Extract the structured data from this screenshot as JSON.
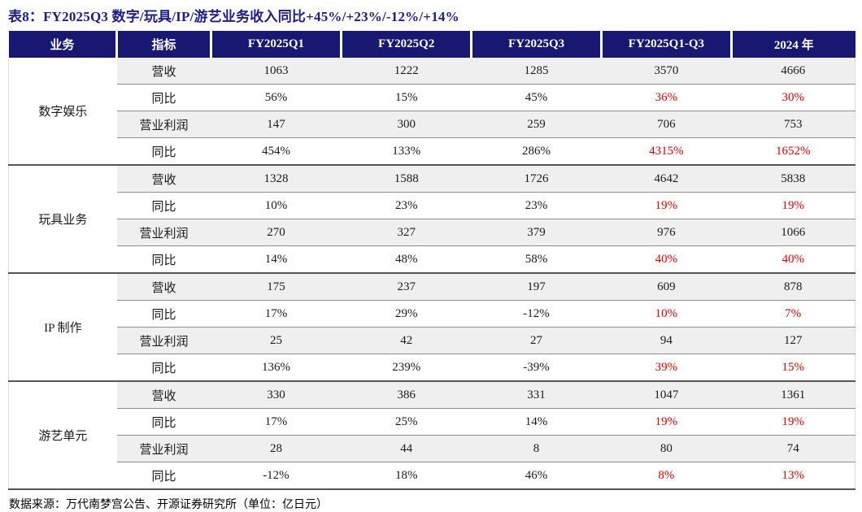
{
  "title": "表8：FY2025Q3 数字/玩具/IP/游艺业务收入同比+45%/+23%/-12%/+14%",
  "footer": "数据来源：万代南梦宫公告、开源证券研究所（单位：亿日元）",
  "colors": {
    "header_bg": "#181873",
    "title_text": "#1c1c8a",
    "negative_highlight_red": "#e80000",
    "row_shade": "#efefef",
    "row_border": "#8c8c8c",
    "group_border": "#555555"
  },
  "table": {
    "columns": [
      "业务",
      "指标",
      "FY2025Q1",
      "FY2025Q2",
      "FY2025Q3",
      "FY2025Q1-Q3",
      "2024 年"
    ],
    "groups": [
      {
        "business": "数字娱乐",
        "rows": [
          {
            "metric": "营收",
            "values": [
              {
                "v": "1063",
                "red": false
              },
              {
                "v": "1222",
                "red": false
              },
              {
                "v": "1285",
                "red": false
              },
              {
                "v": "3570",
                "red": false
              },
              {
                "v": "4666",
                "red": false
              }
            ]
          },
          {
            "metric": "同比",
            "values": [
              {
                "v": "56%",
                "red": false
              },
              {
                "v": "15%",
                "red": false
              },
              {
                "v": "45%",
                "red": false
              },
              {
                "v": "36%",
                "red": true
              },
              {
                "v": "30%",
                "red": true
              }
            ]
          },
          {
            "metric": "营业利润",
            "values": [
              {
                "v": "147",
                "red": false
              },
              {
                "v": "300",
                "red": false
              },
              {
                "v": "259",
                "red": false
              },
              {
                "v": "706",
                "red": false
              },
              {
                "v": "753",
                "red": false
              }
            ]
          },
          {
            "metric": "同比",
            "values": [
              {
                "v": "454%",
                "red": false
              },
              {
                "v": "133%",
                "red": false
              },
              {
                "v": "286%",
                "red": false
              },
              {
                "v": "4315%",
                "red": true
              },
              {
                "v": "1652%",
                "red": true
              }
            ]
          }
        ]
      },
      {
        "business": "玩具业务",
        "rows": [
          {
            "metric": "营收",
            "values": [
              {
                "v": "1328",
                "red": false
              },
              {
                "v": "1588",
                "red": false
              },
              {
                "v": "1726",
                "red": false
              },
              {
                "v": "4642",
                "red": false
              },
              {
                "v": "5838",
                "red": false
              }
            ]
          },
          {
            "metric": "同比",
            "values": [
              {
                "v": "10%",
                "red": false
              },
              {
                "v": "23%",
                "red": false
              },
              {
                "v": "23%",
                "red": false
              },
              {
                "v": "19%",
                "red": true
              },
              {
                "v": "19%",
                "red": true
              }
            ]
          },
          {
            "metric": "营业利润",
            "values": [
              {
                "v": "270",
                "red": false
              },
              {
                "v": "327",
                "red": false
              },
              {
                "v": "379",
                "red": false
              },
              {
                "v": "976",
                "red": false
              },
              {
                "v": "1066",
                "red": false
              }
            ]
          },
          {
            "metric": "同比",
            "values": [
              {
                "v": "14%",
                "red": false
              },
              {
                "v": "48%",
                "red": false
              },
              {
                "v": "58%",
                "red": false
              },
              {
                "v": "40%",
                "red": true
              },
              {
                "v": "40%",
                "red": true
              }
            ]
          }
        ]
      },
      {
        "business": "IP 制作",
        "rows": [
          {
            "metric": "营收",
            "values": [
              {
                "v": "175",
                "red": false
              },
              {
                "v": "237",
                "red": false
              },
              {
                "v": "197",
                "red": false
              },
              {
                "v": "609",
                "red": false
              },
              {
                "v": "878",
                "red": false
              }
            ]
          },
          {
            "metric": "同比",
            "values": [
              {
                "v": "17%",
                "red": false
              },
              {
                "v": "29%",
                "red": false
              },
              {
                "v": "-12%",
                "red": false
              },
              {
                "v": "10%",
                "red": true
              },
              {
                "v": "7%",
                "red": true
              }
            ]
          },
          {
            "metric": "营业利润",
            "values": [
              {
                "v": "25",
                "red": false
              },
              {
                "v": "42",
                "red": false
              },
              {
                "v": "27",
                "red": false
              },
              {
                "v": "94",
                "red": false
              },
              {
                "v": "127",
                "red": false
              }
            ]
          },
          {
            "metric": "同比",
            "values": [
              {
                "v": "136%",
                "red": false
              },
              {
                "v": "239%",
                "red": false
              },
              {
                "v": "-39%",
                "red": false
              },
              {
                "v": "39%",
                "red": true
              },
              {
                "v": "15%",
                "red": true
              }
            ]
          }
        ]
      },
      {
        "business": "游艺单元",
        "rows": [
          {
            "metric": "营收",
            "values": [
              {
                "v": "330",
                "red": false
              },
              {
                "v": "386",
                "red": false
              },
              {
                "v": "331",
                "red": false
              },
              {
                "v": "1047",
                "red": false
              },
              {
                "v": "1361",
                "red": false
              }
            ]
          },
          {
            "metric": "同比",
            "values": [
              {
                "v": "17%",
                "red": false
              },
              {
                "v": "25%",
                "red": false
              },
              {
                "v": "14%",
                "red": false
              },
              {
                "v": "19%",
                "red": true
              },
              {
                "v": "19%",
                "red": true
              }
            ]
          },
          {
            "metric": "营业利润",
            "values": [
              {
                "v": "28",
                "red": false
              },
              {
                "v": "44",
                "red": false
              },
              {
                "v": "8",
                "red": false
              },
              {
                "v": "80",
                "red": false
              },
              {
                "v": "74",
                "red": false
              }
            ]
          },
          {
            "metric": "同比",
            "values": [
              {
                "v": "-12%",
                "red": false
              },
              {
                "v": "18%",
                "red": false
              },
              {
                "v": "46%",
                "red": false
              },
              {
                "v": "8%",
                "red": true
              },
              {
                "v": "13%",
                "red": true
              }
            ]
          }
        ]
      }
    ]
  }
}
